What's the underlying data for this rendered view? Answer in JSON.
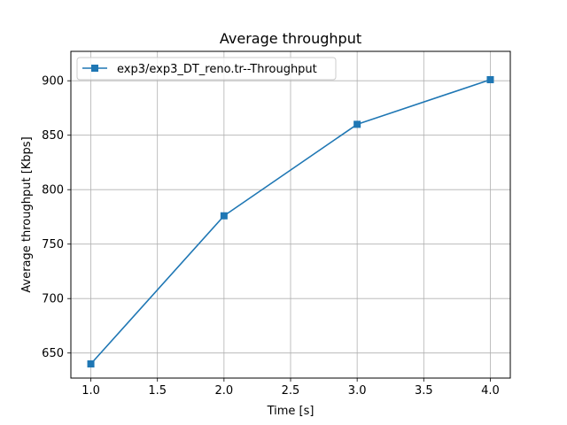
{
  "chart_data": {
    "type": "line",
    "title": "Average throughput",
    "xlabel": "Time [s]",
    "ylabel": "Average throughput [Kbps]",
    "xlim": [
      0.85,
      4.15
    ],
    "ylim": [
      627,
      927
    ],
    "x_ticks": [
      1.0,
      1.5,
      2.0,
      2.5,
      3.0,
      3.5,
      4.0
    ],
    "x_tick_labels": [
      "1.0",
      "1.5",
      "2.0",
      "2.5",
      "3.0",
      "3.5",
      "4.0"
    ],
    "y_ticks": [
      650,
      700,
      750,
      800,
      850,
      900
    ],
    "y_tick_labels": [
      "650",
      "700",
      "750",
      "800",
      "850",
      "900"
    ],
    "grid": true,
    "legend_position": "top-left",
    "series": [
      {
        "name": "exp3/exp3_DT_reno.tr--Throughput",
        "color": "#1f77b4",
        "marker": "square",
        "x": [
          1.0,
          2.0,
          3.0,
          4.0
        ],
        "y": [
          640,
          776,
          860,
          901
        ]
      }
    ]
  }
}
